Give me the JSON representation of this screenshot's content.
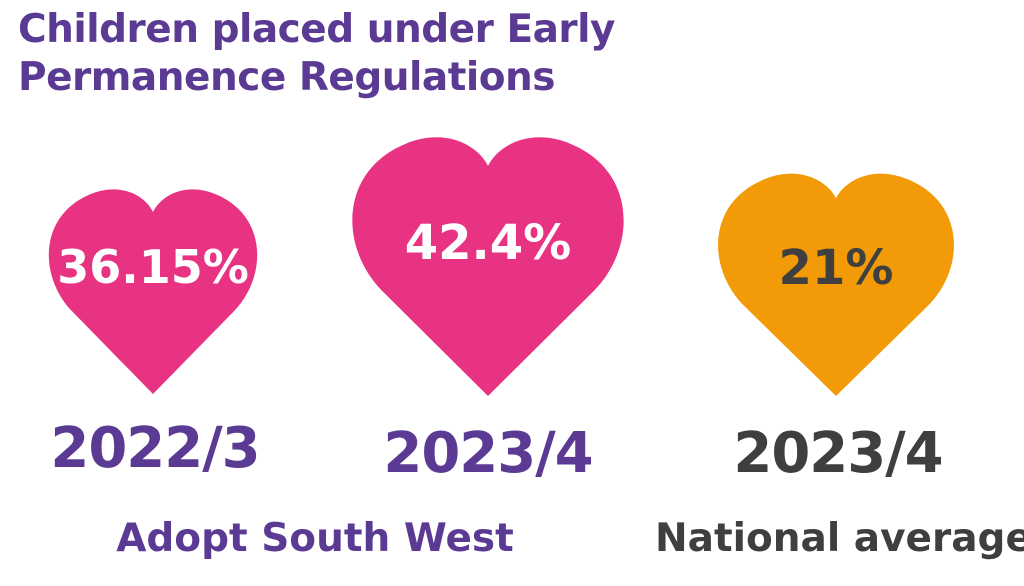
{
  "title": {
    "line1": "Children placed under Early",
    "line2": "Permanence Regulations"
  },
  "colors": {
    "title": "#5b3a93",
    "pink": "#e83282",
    "orange": "#f29a07",
    "dark": "#3f3f3f",
    "white": "#ffffff"
  },
  "chart_data": {
    "type": "pictograph",
    "title": "Children placed under Early Permanence Regulations",
    "unit": "%",
    "items": [
      {
        "value_label": "36.15%",
        "value": 36.15,
        "year": "2022/3",
        "group": "Adopt South West",
        "color": "#e83282"
      },
      {
        "value_label": "42.4%",
        "value": 42.4,
        "year": "2023/4",
        "group": "Adopt South West",
        "color": "#e83282"
      },
      {
        "value_label": "21%",
        "value": 21,
        "year": "2023/4",
        "group": "National average",
        "color": "#f29a07"
      }
    ],
    "groups": [
      "Adopt South West",
      "National average"
    ]
  }
}
